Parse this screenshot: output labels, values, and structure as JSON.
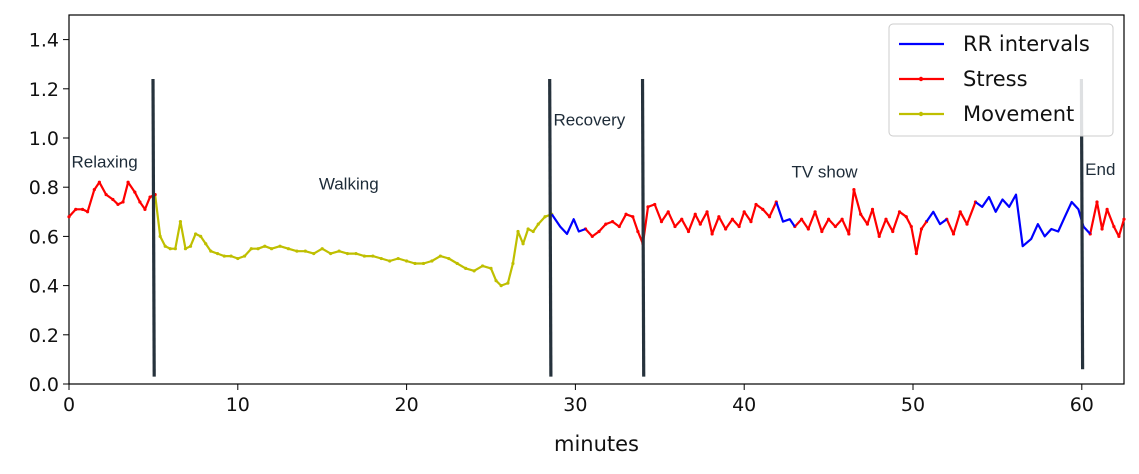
{
  "chart_data": {
    "type": "line",
    "title": "",
    "xlabel": "minutes",
    "ylabel": "",
    "xlim": [
      0,
      62.5
    ],
    "ylim": [
      0,
      1.5
    ],
    "x_ticks": [
      "0",
      "10",
      "20",
      "30",
      "40",
      "50",
      "60"
    ],
    "x_tick_values": [
      0,
      10,
      20,
      30,
      40,
      50,
      60
    ],
    "y_ticks": [
      "0.0",
      "0.2",
      "0.4",
      "0.6",
      "0.8",
      "1.0",
      "1.2",
      "1.4"
    ],
    "y_tick_values": [
      0,
      0.2,
      0.4,
      0.6,
      0.8,
      1.0,
      1.2,
      1.4
    ],
    "grid": false,
    "legend_position": "top-right",
    "legend": [
      {
        "label": "RR intervals",
        "color": "#0000ff",
        "marker": "none"
      },
      {
        "label": "Stress",
        "color": "#ff0000",
        "marker": "dot"
      },
      {
        "label": "Movement",
        "color": "#bfbf00",
        "marker": "dot"
      }
    ],
    "series": [
      {
        "name": "RR intervals",
        "color": "#0000ff",
        "segments": [
          [
            [
              28.6,
              0.69
            ],
            [
              29.1,
              0.64
            ],
            [
              29.5,
              0.61
            ],
            [
              29.9,
              0.67
            ],
            [
              30.2,
              0.62
            ],
            [
              30.6,
              0.63
            ]
          ],
          [
            [
              41.9,
              0.74
            ],
            [
              42.3,
              0.66
            ],
            [
              42.7,
              0.67
            ],
            [
              43.0,
              0.64
            ]
          ],
          [
            [
              50.8,
              0.66
            ],
            [
              51.2,
              0.7
            ],
            [
              51.6,
              0.65
            ],
            [
              52.0,
              0.67
            ]
          ],
          [
            [
              53.7,
              0.74
            ],
            [
              54.1,
              0.72
            ],
            [
              54.5,
              0.76
            ],
            [
              54.9,
              0.7
            ],
            [
              55.3,
              0.75
            ],
            [
              55.7,
              0.72
            ],
            [
              56.1,
              0.77
            ],
            [
              56.5,
              0.56
            ],
            [
              57.0,
              0.59
            ],
            [
              57.4,
              0.65
            ],
            [
              57.8,
              0.6
            ],
            [
              58.2,
              0.63
            ],
            [
              58.6,
              0.62
            ],
            [
              59.0,
              0.68
            ],
            [
              59.4,
              0.74
            ],
            [
              59.8,
              0.71
            ],
            [
              60.1,
              0.64
            ],
            [
              60.5,
              0.61
            ]
          ]
        ]
      },
      {
        "name": "Stress",
        "color": "#ff0000",
        "segments": [
          [
            [
              0.0,
              0.68
            ],
            [
              0.4,
              0.71
            ],
            [
              0.8,
              0.71
            ],
            [
              1.1,
              0.7
            ],
            [
              1.5,
              0.79
            ],
            [
              1.8,
              0.82
            ],
            [
              2.2,
              0.77
            ],
            [
              2.6,
              0.75
            ],
            [
              2.9,
              0.73
            ],
            [
              3.2,
              0.74
            ],
            [
              3.5,
              0.82
            ],
            [
              3.9,
              0.78
            ],
            [
              4.2,
              0.74
            ],
            [
              4.5,
              0.71
            ],
            [
              4.8,
              0.76
            ],
            [
              5.1,
              0.77
            ]
          ],
          [
            [
              30.6,
              0.63
            ],
            [
              31.0,
              0.6
            ],
            [
              31.4,
              0.62
            ],
            [
              31.8,
              0.65
            ],
            [
              32.2,
              0.66
            ],
            [
              32.6,
              0.64
            ],
            [
              33.0,
              0.69
            ],
            [
              33.4,
              0.68
            ],
            [
              33.7,
              0.62
            ],
            [
              34.0,
              0.57
            ],
            [
              34.3,
              0.72
            ],
            [
              34.7,
              0.73
            ],
            [
              35.1,
              0.66
            ],
            [
              35.5,
              0.7
            ],
            [
              35.9,
              0.64
            ],
            [
              36.3,
              0.67
            ],
            [
              36.7,
              0.62
            ],
            [
              37.1,
              0.69
            ],
            [
              37.4,
              0.65
            ],
            [
              37.8,
              0.7
            ],
            [
              38.1,
              0.61
            ],
            [
              38.5,
              0.68
            ],
            [
              38.9,
              0.63
            ],
            [
              39.3,
              0.67
            ],
            [
              39.7,
              0.64
            ],
            [
              40.0,
              0.7
            ],
            [
              40.4,
              0.66
            ],
            [
              40.7,
              0.73
            ],
            [
              41.1,
              0.71
            ],
            [
              41.5,
              0.68
            ],
            [
              41.9,
              0.74
            ]
          ],
          [
            [
              43.0,
              0.64
            ],
            [
              43.4,
              0.67
            ],
            [
              43.8,
              0.63
            ],
            [
              44.2,
              0.7
            ],
            [
              44.6,
              0.62
            ],
            [
              45.0,
              0.67
            ],
            [
              45.4,
              0.64
            ],
            [
              45.8,
              0.67
            ],
            [
              46.2,
              0.61
            ],
            [
              46.5,
              0.79
            ],
            [
              46.9,
              0.69
            ],
            [
              47.3,
              0.65
            ],
            [
              47.6,
              0.71
            ],
            [
              48.0,
              0.6
            ],
            [
              48.4,
              0.67
            ],
            [
              48.8,
              0.62
            ],
            [
              49.2,
              0.7
            ],
            [
              49.6,
              0.68
            ],
            [
              49.9,
              0.64
            ],
            [
              50.2,
              0.53
            ],
            [
              50.5,
              0.63
            ],
            [
              50.8,
              0.66
            ]
          ],
          [
            [
              52.0,
              0.67
            ],
            [
              52.4,
              0.61
            ],
            [
              52.8,
              0.7
            ],
            [
              53.2,
              0.65
            ],
            [
              53.7,
              0.74
            ]
          ],
          [
            [
              60.5,
              0.61
            ],
            [
              60.9,
              0.74
            ],
            [
              61.2,
              0.63
            ],
            [
              61.5,
              0.71
            ],
            [
              61.9,
              0.64
            ],
            [
              62.2,
              0.6
            ],
            [
              62.5,
              0.67
            ]
          ]
        ]
      },
      {
        "name": "Movement",
        "color": "#bfbf00",
        "segments": [
          [
            [
              5.1,
              0.77
            ],
            [
              5.4,
              0.6
            ],
            [
              5.7,
              0.56
            ],
            [
              6.0,
              0.55
            ],
            [
              6.3,
              0.55
            ],
            [
              6.6,
              0.66
            ],
            [
              6.9,
              0.55
            ],
            [
              7.2,
              0.56
            ],
            [
              7.5,
              0.61
            ],
            [
              7.8,
              0.6
            ],
            [
              8.1,
              0.57
            ],
            [
              8.4,
              0.54
            ],
            [
              8.8,
              0.53
            ],
            [
              9.2,
              0.52
            ],
            [
              9.6,
              0.52
            ],
            [
              10.0,
              0.51
            ],
            [
              10.4,
              0.52
            ],
            [
              10.8,
              0.55
            ],
            [
              11.2,
              0.55
            ],
            [
              11.6,
              0.56
            ],
            [
              12.0,
              0.55
            ],
            [
              12.5,
              0.56
            ],
            [
              13.0,
              0.55
            ],
            [
              13.5,
              0.54
            ],
            [
              14.0,
              0.54
            ],
            [
              14.5,
              0.53
            ],
            [
              15.0,
              0.55
            ],
            [
              15.5,
              0.53
            ],
            [
              16.0,
              0.54
            ],
            [
              16.5,
              0.53
            ],
            [
              17.0,
              0.53
            ],
            [
              17.5,
              0.52
            ],
            [
              18.0,
              0.52
            ],
            [
              18.5,
              0.51
            ],
            [
              19.0,
              0.5
            ],
            [
              19.5,
              0.51
            ],
            [
              20.0,
              0.5
            ],
            [
              20.5,
              0.49
            ],
            [
              21.0,
              0.49
            ],
            [
              21.5,
              0.5
            ],
            [
              22.0,
              0.52
            ],
            [
              22.5,
              0.51
            ],
            [
              23.0,
              0.49
            ],
            [
              23.5,
              0.47
            ],
            [
              24.0,
              0.46
            ],
            [
              24.5,
              0.48
            ],
            [
              25.0,
              0.47
            ],
            [
              25.3,
              0.42
            ],
            [
              25.6,
              0.4
            ],
            [
              26.0,
              0.41
            ],
            [
              26.3,
              0.49
            ],
            [
              26.6,
              0.62
            ],
            [
              26.9,
              0.57
            ],
            [
              27.2,
              0.63
            ],
            [
              27.5,
              0.62
            ],
            [
              27.8,
              0.65
            ],
            [
              28.2,
              0.68
            ],
            [
              28.6,
              0.69
            ]
          ]
        ]
      }
    ],
    "phase_markers": [
      {
        "x": 5.0,
        "y_top": 1.24,
        "y_bottom": 0.03
      },
      {
        "x": 28.5,
        "y_top": 1.24,
        "y_bottom": 0.03
      },
      {
        "x": 34.0,
        "y_top": 1.24,
        "y_bottom": 0.03
      },
      {
        "x": 60.0,
        "y_top": 1.24,
        "y_bottom": 0.06
      }
    ],
    "phase_labels": [
      {
        "text": "Relaxing",
        "x": 0.15,
        "y": 0.88
      },
      {
        "text": "Walking",
        "x": 14.8,
        "y": 0.79
      },
      {
        "text": "Recovery",
        "x": 28.7,
        "y": 1.05
      },
      {
        "text": "TV show",
        "x": 42.8,
        "y": 0.84
      },
      {
        "text": "End",
        "x": 60.2,
        "y": 0.85
      }
    ]
  }
}
